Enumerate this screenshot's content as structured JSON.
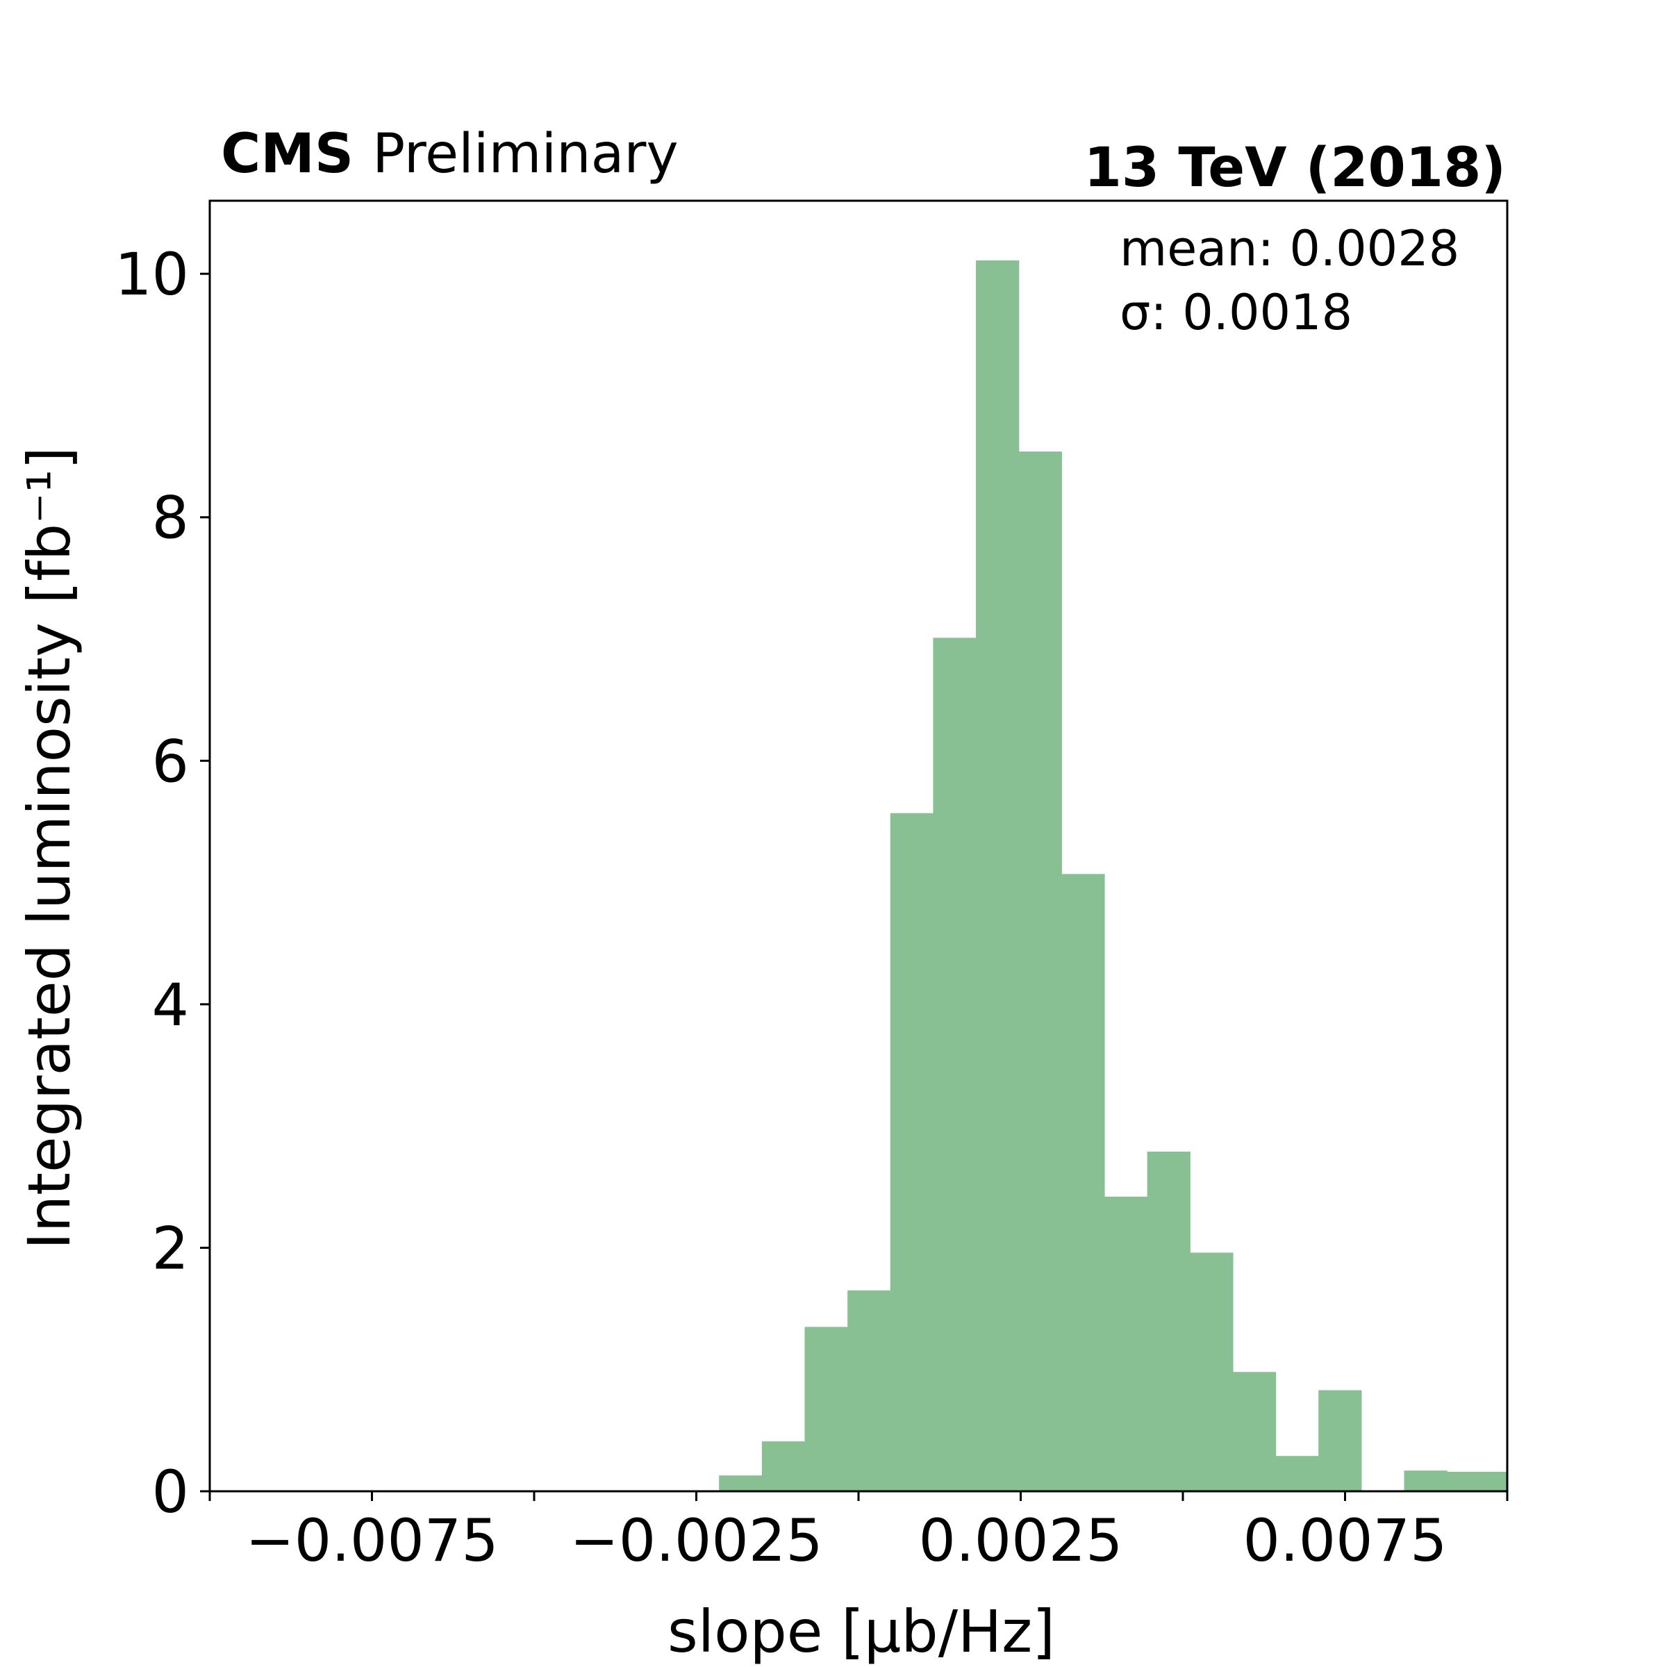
{
  "chart_data": {
    "type": "bar",
    "header": {
      "experiment": "CMS",
      "status": "Preliminary",
      "energy": "13 TeV (2018)"
    },
    "xlabel": "slope [µb/Hz]",
    "ylabel": "Integrated luminosity [fb⁻¹]",
    "xlim": [
      -0.01,
      0.01
    ],
    "ylim": [
      0,
      10.6
    ],
    "x_ticks": [
      {
        "value": -0.01,
        "label": ""
      },
      {
        "value": -0.0075,
        "label": "−0.0075"
      },
      {
        "value": -0.005,
        "label": ""
      },
      {
        "value": -0.0025,
        "label": "−0.0025"
      },
      {
        "value": 0.0,
        "label": ""
      },
      {
        "value": 0.0025,
        "label": "0.0025"
      },
      {
        "value": 0.005,
        "label": ""
      },
      {
        "value": 0.0075,
        "label": "0.0075"
      },
      {
        "value": 0.01,
        "label": ""
      }
    ],
    "y_ticks": [
      {
        "value": 0,
        "label": "0"
      },
      {
        "value": 2,
        "label": "2"
      },
      {
        "value": 4,
        "label": "4"
      },
      {
        "value": 6,
        "label": "6"
      },
      {
        "value": 8,
        "label": "8"
      },
      {
        "value": 10,
        "label": "10"
      }
    ],
    "stats": {
      "mean": "mean: 0.0028",
      "sigma": "σ: 0.0018"
    },
    "bar_color": "#88c093",
    "grid": false,
    "bins": [
      {
        "x0": -0.00215,
        "x1": -0.00149,
        "value": 0.13
      },
      {
        "x0": -0.00149,
        "x1": -0.00083,
        "value": 0.41
      },
      {
        "x0": -0.00083,
        "x1": -0.00017,
        "value": 1.35
      },
      {
        "x0": -0.00017,
        "x1": 0.00049,
        "value": 1.65
      },
      {
        "x0": 0.00049,
        "x1": 0.00115,
        "value": 5.57
      },
      {
        "x0": 0.00115,
        "x1": 0.00181,
        "value": 7.01
      },
      {
        "x0": 0.00181,
        "x1": 0.00247,
        "value": 10.11
      },
      {
        "x0": 0.00247,
        "x1": 0.00313,
        "value": 8.54
      },
      {
        "x0": 0.00313,
        "x1": 0.00379,
        "value": 5.07
      },
      {
        "x0": 0.00379,
        "x1": 0.00445,
        "value": 2.42
      },
      {
        "x0": 0.00445,
        "x1": 0.00511,
        "value": 2.79
      },
      {
        "x0": 0.00511,
        "x1": 0.00577,
        "value": 1.96
      },
      {
        "x0": 0.00577,
        "x1": 0.00643,
        "value": 0.98
      },
      {
        "x0": 0.00643,
        "x1": 0.00709,
        "value": 0.29
      },
      {
        "x0": 0.00709,
        "x1": 0.00775,
        "value": 0.83
      },
      {
        "x0": 0.00775,
        "x1": 0.00841,
        "value": 0.0
      },
      {
        "x0": 0.00841,
        "x1": 0.00907,
        "value": 0.17
      },
      {
        "x0": 0.00907,
        "x1": 0.01,
        "value": 0.16
      }
    ]
  }
}
